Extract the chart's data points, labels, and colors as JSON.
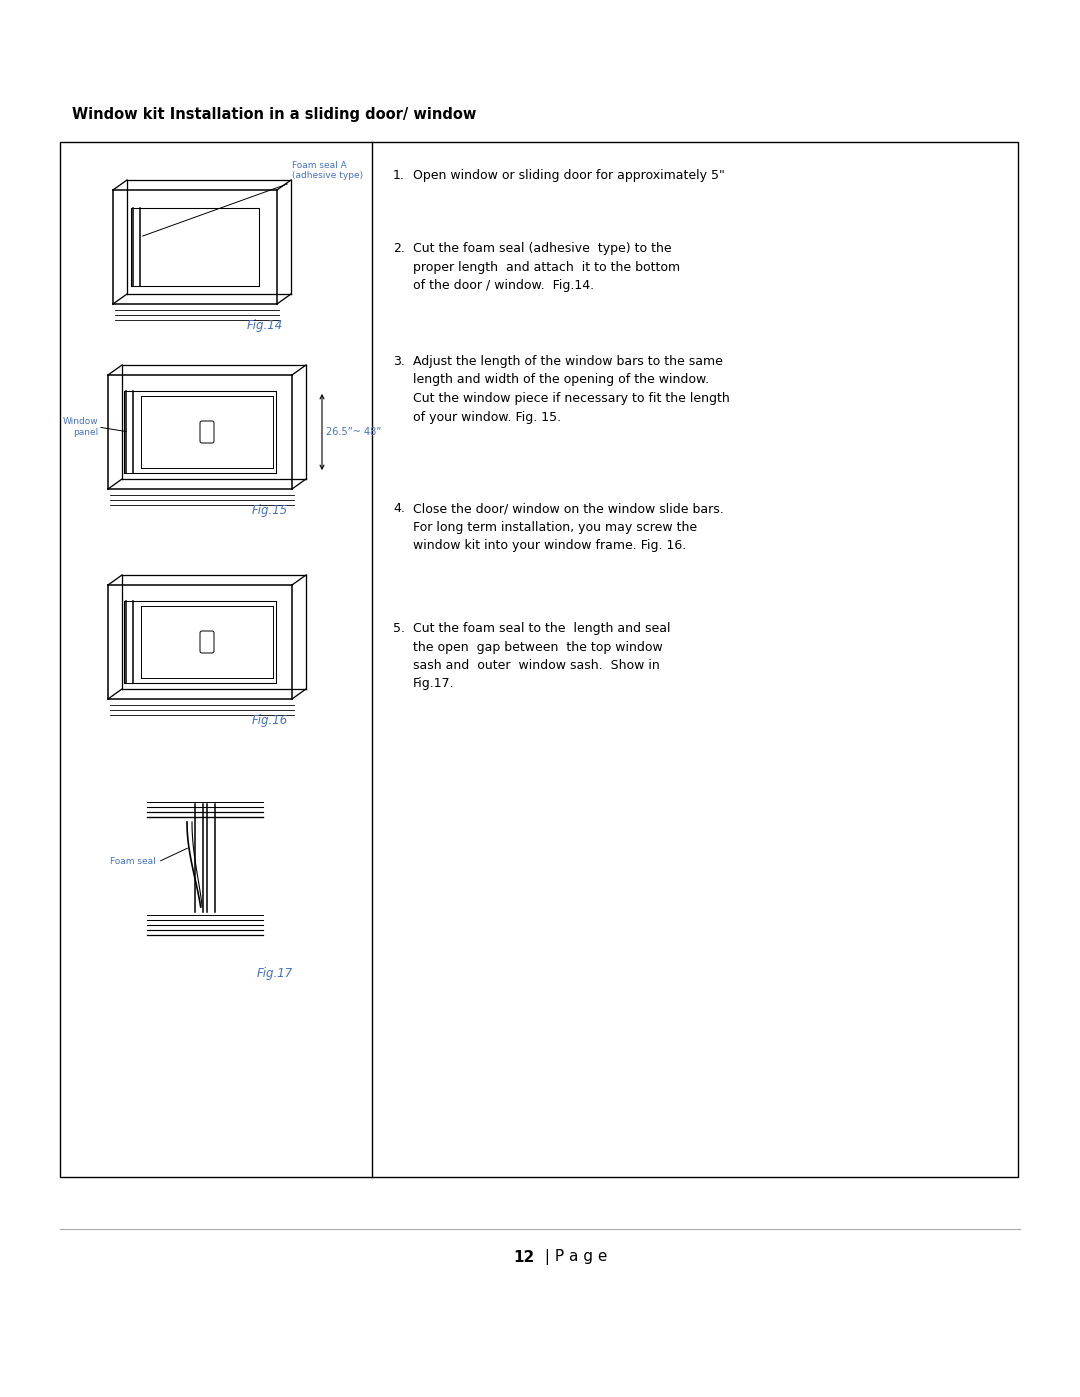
{
  "title": "Window kit Installation in a sliding door/ window",
  "title_fontsize": 10.5,
  "page_number": "12",
  "background_color": "#ffffff",
  "border_color": "#000000",
  "text_color": "#000000",
  "label_color": "#4472C4",
  "fig_labels": [
    "Fig.14",
    "Fig.15",
    "Fig.16",
    "Fig.17"
  ],
  "instructions": [
    "Open window or sliding door for approximately 5\"",
    "Cut the foam seal (adhesive  type) to the\nproper length  and attach  it to the bottom\nof the door / window.  Fig.14.",
    "Adjust the length of the window bars to the same\nlength and width of the opening of the window.\nCut the window piece if necessary to fit the length\nof your window. Fig. 15.",
    "Close the door/ window on the window slide bars.\nFor long term installation, you may screw the\nwindow kit into your window frame. Fig. 16.",
    "Cut the foam seal to the  length and seal\nthe open  gap between  the top window\nsash and  outer  window sash.  Show in\nFig.17."
  ],
  "annotation_foam_seal_a": "Foam seal A\n(adhesive type)",
  "annotation_window_panel": "Window\npanel",
  "annotation_dimension": "26.5”~ 48”",
  "annotation_foam_seal": "Foam seal"
}
